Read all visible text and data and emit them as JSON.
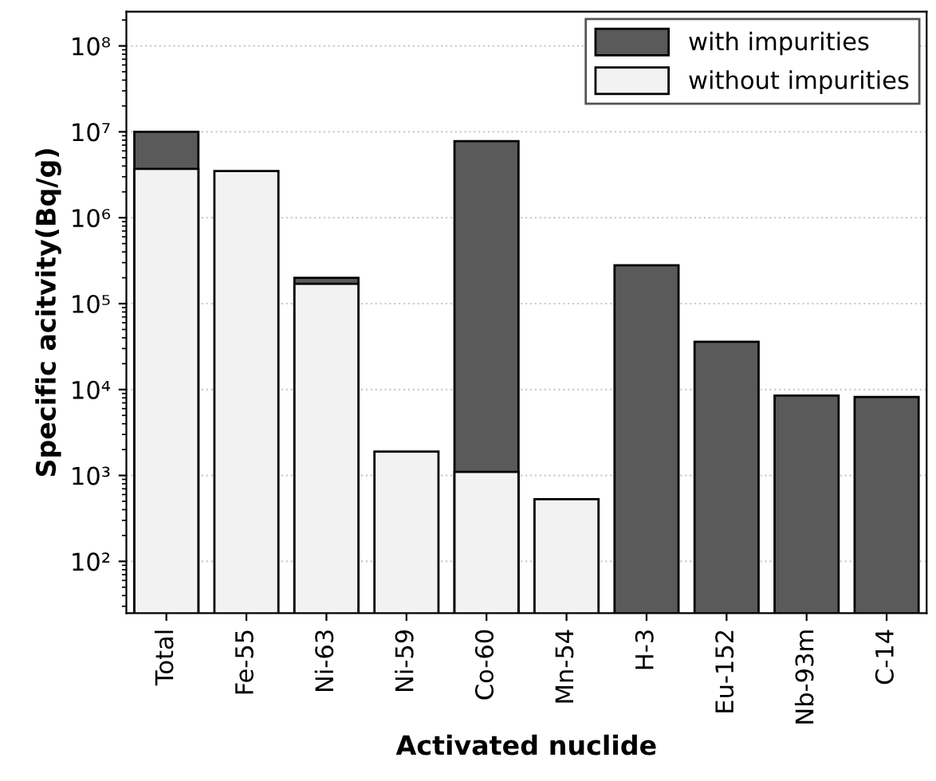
{
  "chart_data": {
    "type": "bar",
    "xlabel": "Activated nuclide",
    "ylabel": "Specific acitvity(Bq/g)",
    "categories": [
      "Total",
      "Fe-55",
      "Ni-63",
      "Ni-59",
      "Co-60",
      "Mn-54",
      "H-3",
      "Eu-152",
      "Nb-93m",
      "C-14"
    ],
    "series": [
      {
        "name": "with impurities",
        "color": "#5a5a5a",
        "values": [
          10000000,
          null,
          200000,
          null,
          7800000,
          null,
          280000,
          36000,
          8500,
          8200
        ]
      },
      {
        "name": "without impurities",
        "color": "#f2f2f2",
        "values": [
          3700000,
          3500000,
          170000,
          1900,
          1100,
          530,
          null,
          null,
          null,
          null
        ]
      }
    ],
    "log": "y",
    "ylim": [
      25,
      250000000
    ],
    "yticks": [
      {
        "value": 100,
        "label": "10²"
      },
      {
        "value": 1000,
        "label": "10³"
      },
      {
        "value": 10000,
        "label": "10⁴"
      },
      {
        "value": 100000,
        "label": "10⁵"
      },
      {
        "value": 1000000,
        "label": "10⁶"
      },
      {
        "value": 10000000,
        "label": "10⁷"
      },
      {
        "value": 100000000,
        "label": "10⁸"
      }
    ],
    "grid": "y",
    "legend": "top right"
  }
}
